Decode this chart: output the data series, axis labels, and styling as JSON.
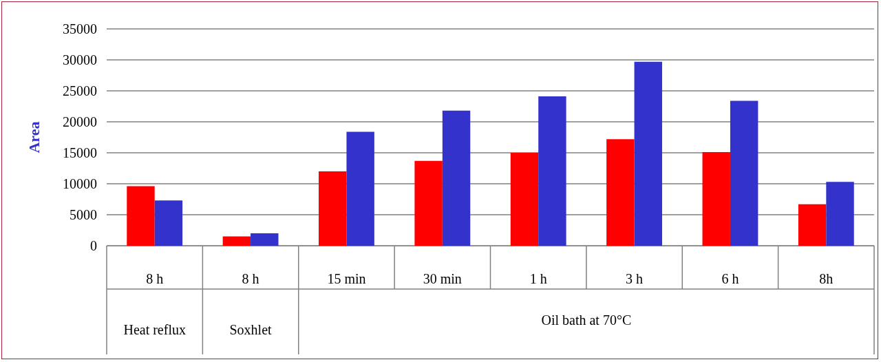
{
  "chart_data": {
    "type": "bar",
    "ylabel": "Area",
    "categories": [
      "8 h",
      "8 h",
      "15 min",
      "30 min",
      "1 h",
      "3 h",
      "6 h",
      "8h"
    ],
    "series": [
      {
        "color": "#ff0000",
        "values": [
          9600,
          1500,
          12000,
          13700,
          15000,
          17200,
          15100,
          6700
        ]
      },
      {
        "color": "#3333cc",
        "values": [
          7300,
          2000,
          18400,
          21800,
          24100,
          29700,
          23400,
          10300
        ]
      }
    ],
    "ylim": [
      0,
      35000
    ],
    "yticks": [
      0,
      5000,
      10000,
      15000,
      20000,
      25000,
      30000,
      35000
    ],
    "grid": "y",
    "annotations": [
      "Heat reflux",
      "Soxhlet",
      "Oil bath at 70°C"
    ]
  }
}
